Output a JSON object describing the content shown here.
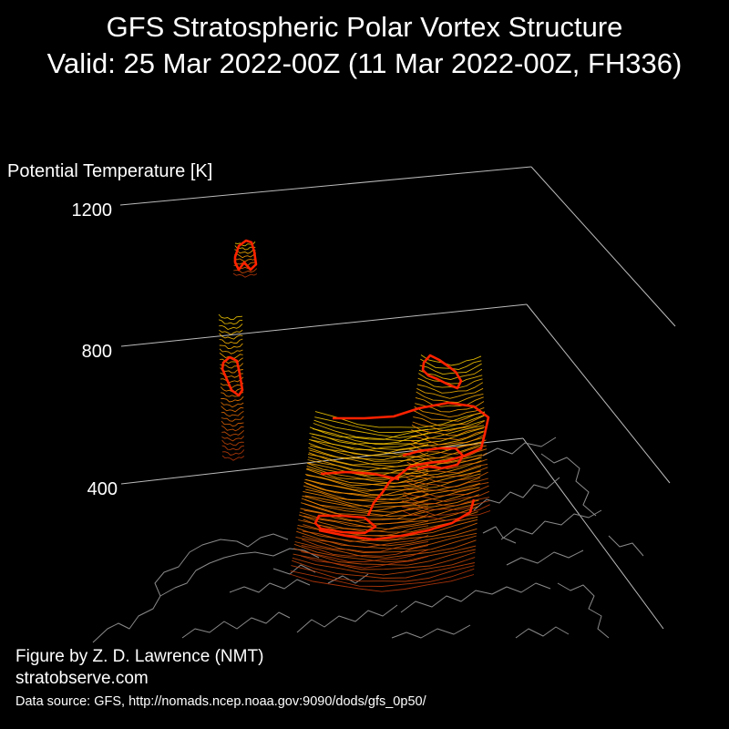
{
  "title_line1": "GFS Stratospheric Polar Vortex Structure",
  "title_line2": "Valid: 25 Mar 2022-00Z  (11 Mar 2022-00Z, FH336)",
  "credits": {
    "author": "Figure by Z. D. Lawrence (NMT)",
    "website": "stratobserve.com",
    "source": "Data source: GFS, http://nomads.ncep.noaa.gov:9090/dods/gfs_0p50/"
  },
  "chart_data": {
    "type": "3d-isosurface",
    "zlabel": "Potential Temperature [K]",
    "zticks": [
      400,
      800,
      1200
    ],
    "zlim": [
      300,
      1200
    ],
    "colors": {
      "background": "#000000",
      "axes": "#bbbbbb",
      "coastlines": "#8a8a8a",
      "vortex_edge": "#ff2200",
      "vortex_low": "#c0390a",
      "vortex_mid": "#ff8c00",
      "vortex_high": "#ffd200"
    }
  }
}
